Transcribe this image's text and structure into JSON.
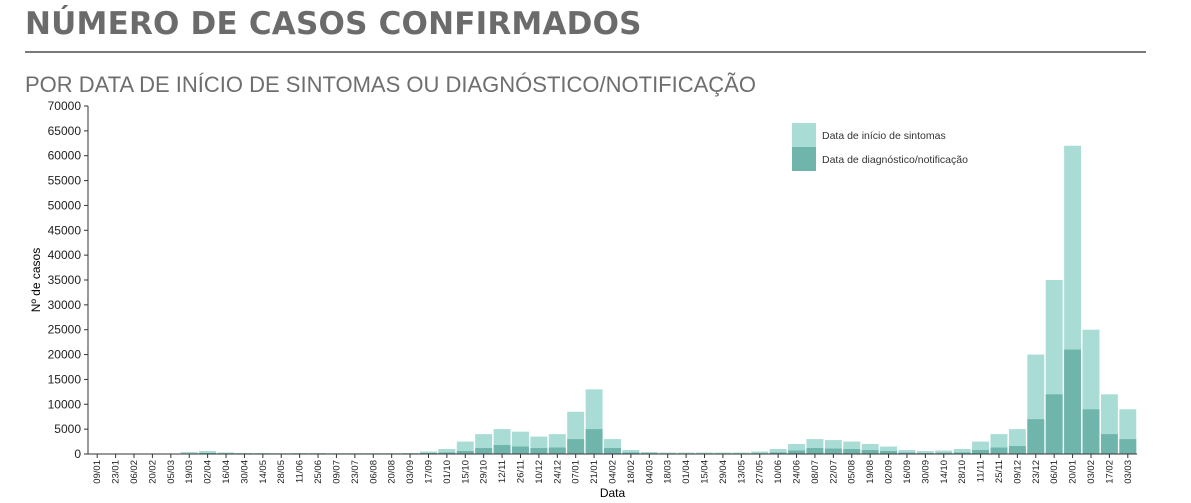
{
  "header": {
    "title": "NÚMERO DE CASOS CONFIRMADOS",
    "subtitle": "POR DATA DE INÍCIO DE SINTOMAS OU DIAGNÓSTICO/NOTIFICAÇÃO"
  },
  "chart_data": {
    "type": "bar",
    "xlabel": "Data",
    "ylabel": "Nº de casos",
    "ylim": [
      0,
      70000
    ],
    "y_ticks": [
      0,
      5000,
      10000,
      15000,
      20000,
      25000,
      30000,
      35000,
      40000,
      45000,
      50000,
      55000,
      60000,
      65000,
      70000
    ],
    "x_tick_labels": [
      "09/01",
      "23/01",
      "06/02",
      "20/02",
      "05/03",
      "19/03",
      "02/04",
      "16/04",
      "30/04",
      "14/05",
      "28/05",
      "11/06",
      "25/06",
      "09/07",
      "23/07",
      "06/08",
      "20/08",
      "03/09",
      "17/09",
      "01/10",
      "15/10",
      "29/10",
      "12/11",
      "26/11",
      "10/12",
      "24/12",
      "07/01",
      "21/01",
      "04/02",
      "18/02",
      "04/03",
      "18/03",
      "01/04",
      "15/04",
      "29/04",
      "13/05",
      "27/05",
      "10/06",
      "24/06",
      "08/07",
      "22/07",
      "05/08",
      "19/08",
      "02/09",
      "16/09",
      "30/09",
      "14/10",
      "28/10",
      "11/11",
      "25/11",
      "09/12",
      "23/12",
      "06/01",
      "20/01",
      "03/02",
      "17/02",
      "03/03"
    ],
    "legend_position": "top-right",
    "colors": {
      "inicio_sintomas": "#a8dcd5",
      "diagnostico_notificacao": "#6fb5ac"
    },
    "series": [
      {
        "name": "Data de início de sintomas",
        "x": [
          "09/01",
          "23/01",
          "06/02",
          "20/02",
          "05/03",
          "19/03",
          "02/04",
          "16/04",
          "30/04",
          "14/05",
          "28/05",
          "11/06",
          "25/06",
          "09/07",
          "23/07",
          "06/08",
          "20/08",
          "03/09",
          "17/09",
          "01/10",
          "15/10",
          "29/10",
          "12/11",
          "26/11",
          "10/12",
          "24/12",
          "07/01",
          "21/01",
          "04/02",
          "18/02",
          "04/03",
          "18/03",
          "01/04",
          "15/04",
          "29/04",
          "13/05",
          "27/05",
          "10/06",
          "24/06",
          "08/07",
          "22/07",
          "05/08",
          "19/08",
          "02/09",
          "16/09",
          "30/09",
          "14/10",
          "28/10",
          "11/11",
          "25/11",
          "09/12",
          "23/12",
          "06/01",
          "20/01",
          "03/02",
          "17/02",
          "03/03"
        ],
        "values": [
          0,
          0,
          0,
          0,
          50,
          400,
          600,
          300,
          200,
          200,
          150,
          200,
          200,
          150,
          150,
          150,
          150,
          200,
          500,
          1000,
          2500,
          4000,
          5000,
          4500,
          3500,
          4000,
          8500,
          13000,
          3000,
          800,
          400,
          300,
          300,
          300,
          300,
          300,
          500,
          1000,
          2000,
          3000,
          2800,
          2500,
          2000,
          1500,
          800,
          600,
          700,
          1000,
          2500,
          4000,
          5000,
          20000,
          35000,
          62000,
          25000,
          12000,
          9000
        ]
      },
      {
        "name": "Data de diagnóstico/notificação",
        "x": [
          "09/01",
          "23/01",
          "06/02",
          "20/02",
          "05/03",
          "19/03",
          "02/04",
          "16/04",
          "30/04",
          "14/05",
          "28/05",
          "11/06",
          "25/06",
          "09/07",
          "23/07",
          "06/08",
          "20/08",
          "03/09",
          "17/09",
          "01/10",
          "15/10",
          "29/10",
          "12/11",
          "26/11",
          "10/12",
          "24/12",
          "07/01",
          "21/01",
          "04/02",
          "18/02",
          "04/03",
          "18/03",
          "01/04",
          "15/04",
          "29/04",
          "13/05",
          "27/05",
          "10/06",
          "24/06",
          "08/07",
          "22/07",
          "05/08",
          "19/08",
          "02/09",
          "16/09",
          "30/09",
          "14/10",
          "28/10",
          "11/11",
          "25/11",
          "09/12",
          "23/12",
          "06/01",
          "20/01",
          "03/02",
          "17/02",
          "03/03"
        ],
        "values": [
          0,
          0,
          0,
          0,
          0,
          100,
          200,
          150,
          100,
          100,
          100,
          100,
          100,
          100,
          100,
          100,
          100,
          100,
          200,
          300,
          600,
          1200,
          1800,
          1500,
          1200,
          1300,
          3000,
          5000,
          1200,
          300,
          150,
          100,
          100,
          100,
          100,
          100,
          150,
          300,
          700,
          1200,
          1100,
          1000,
          800,
          600,
          300,
          200,
          250,
          300,
          800,
          1300,
          1600,
          7000,
          12000,
          21000,
          9000,
          4000,
          3000
        ]
      }
    ]
  }
}
